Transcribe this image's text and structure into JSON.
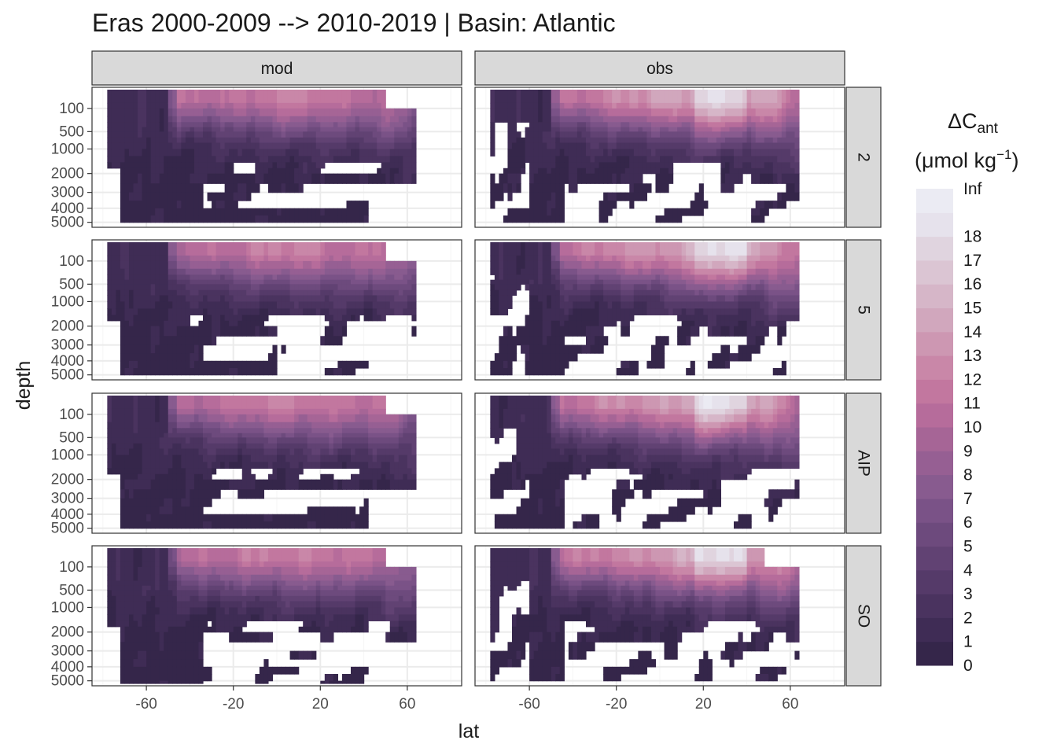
{
  "chart_data": {
    "type": "heatmap",
    "title": "Eras 2000-2009 --> 2010-2019 | Basin: Atlantic",
    "xlabel": "lat",
    "ylabel": "depth",
    "facet_columns": [
      "mod",
      "obs"
    ],
    "facet_rows": [
      "2",
      "5",
      "AIP",
      "SO"
    ],
    "x_ticks": [
      -60,
      -20,
      20,
      60
    ],
    "xlim": [
      -85,
      85
    ],
    "y_ticks": [
      100,
      500,
      1000,
      2000,
      3000,
      4000,
      5000
    ],
    "ylim": [
      5200,
      0
    ],
    "y_scale": "reversed sqrt",
    "grid": true,
    "legend": {
      "title_main": "ΔC",
      "title_sub": "ant",
      "unit": "(μmol kg",
      "unit_exp": "−1",
      "unit_close": ")",
      "placement": "right",
      "levels": [
        "0",
        "1",
        "2",
        "3",
        "4",
        "5",
        "6",
        "7",
        "8",
        "9",
        "10",
        "11",
        "12",
        "13",
        "14",
        "15",
        "16",
        "17",
        "18",
        "Inf"
      ],
      "colors": [
        "#35264a",
        "#3f2c55",
        "#4a335f",
        "#553a69",
        "#614273",
        "#6d4a7d",
        "#7a5287",
        "#885b8f",
        "#965f93",
        "#a66596",
        "#b66c9b",
        "#c2779f",
        "#c987a8",
        "#cd97b2",
        "#d1a7bd",
        "#d6b6c8",
        "#dbc5d3",
        "#e0d4df",
        "#e6e2ec",
        "#ebebf3"
      ]
    },
    "panels": [
      {
        "row": "2",
        "col": "mod",
        "lat_range": [
          -78,
          64
        ],
        "surface_max_level": 12,
        "max_depth": 5000
      },
      {
        "row": "2",
        "col": "obs",
        "lat_range": [
          -78,
          64
        ],
        "surface_max_level": 18,
        "max_depth": 5000
      },
      {
        "row": "5",
        "col": "mod",
        "lat_range": [
          -78,
          64
        ],
        "surface_max_level": 12,
        "max_depth": 5000
      },
      {
        "row": "5",
        "col": "obs",
        "lat_range": [
          -78,
          64
        ],
        "surface_max_level": 18,
        "max_depth": 5000
      },
      {
        "row": "AIP",
        "col": "mod",
        "lat_range": [
          -78,
          64
        ],
        "surface_max_level": 12,
        "max_depth": 5000
      },
      {
        "row": "AIP",
        "col": "obs",
        "lat_range": [
          -78,
          64
        ],
        "surface_max_level": 18,
        "max_depth": 5000
      },
      {
        "row": "SO",
        "col": "mod",
        "lat_range": [
          -78,
          64
        ],
        "surface_max_level": 12,
        "max_depth": 5200
      },
      {
        "row": "SO",
        "col": "obs",
        "lat_range": [
          -78,
          64
        ],
        "surface_max_level": 18,
        "max_depth": 5000
      }
    ]
  }
}
